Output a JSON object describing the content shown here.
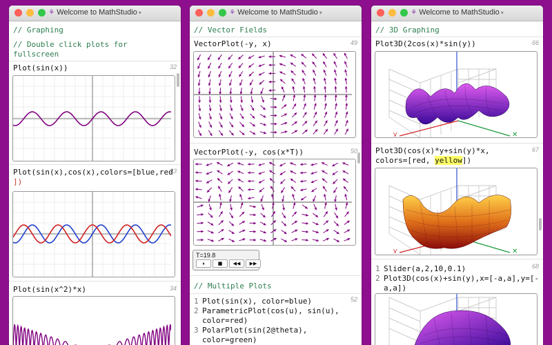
{
  "windows": [
    {
      "title": "Welcome to MathStudio"
    },
    {
      "title": "Welcome to MathStudio"
    },
    {
      "title": "Welcome to MathStudio"
    }
  ],
  "w1": {
    "comment1": "// Graphing",
    "comment2": "// Double click plots for",
    "comment3": "fullscreen",
    "cell32": {
      "code": "Plot(sin(x))",
      "num": "32"
    },
    "cell33": {
      "code1": "Plot(sin(x),cos(x),colors=[blue,red",
      "code2": "])",
      "num": "33"
    },
    "cell34": {
      "code": "Plot(sin(x^2)*x)",
      "num": "34"
    }
  },
  "w2": {
    "comment1": "// Vector Fields",
    "cell49": {
      "code": "VectorPlot(-y, x)",
      "num": "49"
    },
    "cell50": {
      "code": "VectorPlot(-y, cos(x*T))",
      "num": "50"
    },
    "timer": {
      "label": "T=19.8",
      "play": "⏸",
      "stop": "■",
      "rew": "◀◀",
      "ffw": "▶▶"
    },
    "comment2": "// Multiple Plots",
    "cell52": {
      "num": "52",
      "lines": [
        {
          "n": "1",
          "t": "Plot(sin(x), color=blue)"
        },
        {
          "n": "2",
          "t": "ParametricPlot(cos(u), sin(u),"
        },
        {
          "n": "",
          "t": "color=red)"
        },
        {
          "n": "3",
          "t": "PolarPlot(sin(2@theta),"
        },
        {
          "n": "",
          "t": "color=green)"
        }
      ]
    }
  },
  "w3": {
    "comment1": "// 3D Graphing",
    "cell66": {
      "code": "Plot3D(2cos(x)*sin(y))",
      "num": "66"
    },
    "cell67": {
      "code1": "Plot3D(cos(x)*y+sin(y)*x,",
      "code2a": "colors=[red, ",
      "code2b": "yellow",
      "code2c": "])",
      "num": "67"
    },
    "cell68": {
      "num": "68",
      "lines": [
        {
          "n": "1",
          "t": "Slider(a,2,10,0.1)"
        },
        {
          "n": "2",
          "t": "Plot3D(cos(x)+sin(y),x=[-a,a],y=[-"
        },
        {
          "n": "",
          "t": "a,a])"
        }
      ]
    }
  },
  "colors": {
    "purple": "#800080",
    "blue": "#1f3fd0",
    "red": "#d01f1f",
    "green": "#2e7d4f"
  }
}
